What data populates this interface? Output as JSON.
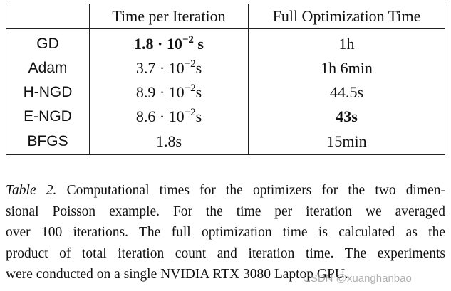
{
  "table": {
    "header": [
      "",
      "Time per Iteration",
      "Full Optimization Time"
    ],
    "rows": [
      {
        "name": "GD",
        "time": {
          "base": "1.8 · 10",
          "exp": "−2",
          "unit": " s",
          "bold": true
        },
        "full": {
          "text": "1h"
        }
      },
      {
        "name": "Adam",
        "time": {
          "base": "3.7 · 10",
          "exp": "−2",
          "unit": "s"
        },
        "full": {
          "text": "1h 6min"
        }
      },
      {
        "name": "H-NGD",
        "time": {
          "base": "8.9 · 10",
          "exp": "−2",
          "unit": "s"
        },
        "full": {
          "text": "44.5s"
        }
      },
      {
        "name": "E-NGD",
        "time": {
          "base": "8.6 · 10",
          "exp": "−2",
          "unit": "s"
        },
        "full": {
          "text": "43s",
          "bold": true
        }
      },
      {
        "name": "BFGS",
        "time": {
          "base": "1.8s"
        },
        "full": {
          "text": "15min"
        }
      }
    ]
  },
  "caption": {
    "label": "Table 2.",
    "lines": [
      " Computational times for the optimizers for the two dimen-",
      "sional Poisson example. For the time per iteration we averaged",
      "over 100 iterations. The full optimization time is calculated as the",
      "product of total iteration count and iteration time. The experiments",
      "were conducted on a single NVIDIA RTX 3080 Laptop GPU."
    ]
  },
  "watermark": "CSDN @xuanghanbao"
}
